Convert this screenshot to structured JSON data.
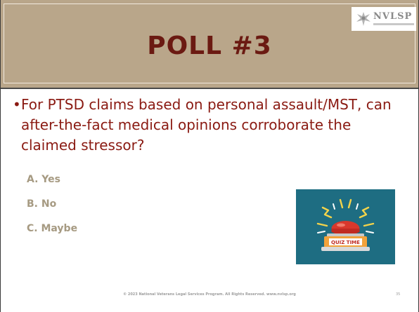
{
  "slide": {
    "title": "POLL #3",
    "logo": {
      "text": "NVLSP",
      "tagline": "NATIONAL VETERANS LEGAL SERVICES PROGRAM"
    },
    "bullet_glyph": "•",
    "question": "For PTSD claims based on personal assault/MST, can after-the-fact medical opinions corroborate the claimed stressor?",
    "options": [
      "A.  Yes",
      "B.  No",
      "C.  Maybe"
    ],
    "illustration": {
      "icon": "quiz-time-buzzer-icon",
      "label": "QUIZ TIME"
    },
    "footer": "© 2023 National Veterans Legal Services Program. All Rights Reserved. www.nvlsp.org",
    "slide_number": "35"
  },
  "colors": {
    "header_bg": "#b9a68a",
    "title": "#6b1a12",
    "question": "#8a1a12",
    "options": "#a69a82",
    "illustration_bg": "#1e6d82"
  }
}
